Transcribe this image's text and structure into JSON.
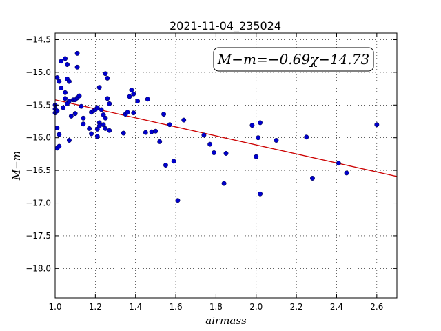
{
  "chart_data": {
    "type": "scatter",
    "title": "2021-11-04_235024",
    "xlabel": "airmass",
    "ylabel": "M−m",
    "xlim": [
      1.0,
      2.7
    ],
    "ylim": [
      -18.45,
      -14.4
    ],
    "y_inverted": true,
    "grid": true,
    "x_ticks": [
      1.0,
      1.2,
      1.4,
      1.6,
      1.8,
      2.0,
      2.2,
      2.4,
      2.6
    ],
    "x_tick_labels": [
      "1.0",
      "1.2",
      "1.4",
      "1.6",
      "1.8",
      "2.0",
      "2.2",
      "2.4",
      "2.6"
    ],
    "y_ticks": [
      -14.5,
      -15.0,
      -15.5,
      -16.0,
      -16.5,
      -17.0,
      -17.5,
      -18.0
    ],
    "y_tick_labels": [
      "−14.5",
      "−15.0",
      "−15.5",
      "−16.0",
      "−16.5",
      "−17.0",
      "−17.5",
      "−18.0"
    ],
    "annotation": "M−m=−0.69χ−14.73",
    "annotation_placement": "top-right",
    "fit": {
      "slope": -0.69,
      "intercept": -14.73,
      "color": "#cc0000"
    },
    "point_color": "#0000cc",
    "points": [
      [
        1.0,
        -15.5
      ],
      [
        1.0,
        -15.56
      ],
      [
        1.0,
        -15.62
      ],
      [
        1.01,
        -15.08
      ],
      [
        1.01,
        -15.59
      ],
      [
        1.01,
        -15.85
      ],
      [
        1.01,
        -16.16
      ],
      [
        1.02,
        -15.14
      ],
      [
        1.02,
        -15.95
      ],
      [
        1.02,
        -16.13
      ],
      [
        1.03,
        -15.24
      ],
      [
        1.03,
        -14.83
      ],
      [
        1.04,
        -15.54
      ],
      [
        1.05,
        -14.79
      ],
      [
        1.05,
        -15.31
      ],
      [
        1.05,
        -15.4
      ],
      [
        1.06,
        -14.88
      ],
      [
        1.06,
        -15.1
      ],
      [
        1.06,
        -15.48
      ],
      [
        1.07,
        -15.14
      ],
      [
        1.07,
        -15.44
      ],
      [
        1.07,
        -16.04
      ],
      [
        1.08,
        -15.67
      ],
      [
        1.09,
        -15.42
      ],
      [
        1.1,
        -15.63
      ],
      [
        1.1,
        -15.42
      ],
      [
        1.11,
        -14.71
      ],
      [
        1.11,
        -14.92
      ],
      [
        1.11,
        -15.39
      ],
      [
        1.12,
        -15.36
      ],
      [
        1.13,
        -15.52
      ],
      [
        1.14,
        -15.7
      ],
      [
        1.14,
        -15.79
      ],
      [
        1.17,
        -15.86
      ],
      [
        1.18,
        -15.61
      ],
      [
        1.18,
        -15.94
      ],
      [
        1.19,
        -15.59
      ],
      [
        1.2,
        -15.57
      ],
      [
        1.21,
        -15.54
      ],
      [
        1.21,
        -15.98
      ],
      [
        1.21,
        -15.87
      ],
      [
        1.22,
        -15.77
      ],
      [
        1.22,
        -15.82
      ],
      [
        1.22,
        -15.23
      ],
      [
        1.23,
        -15.57
      ],
      [
        1.24,
        -15.65
      ],
      [
        1.24,
        -15.8
      ],
      [
        1.25,
        -15.86
      ],
      [
        1.25,
        -15.7
      ],
      [
        1.25,
        -15.02
      ],
      [
        1.26,
        -15.09
      ],
      [
        1.26,
        -15.4
      ],
      [
        1.27,
        -15.89
      ],
      [
        1.27,
        -15.48
      ],
      [
        1.34,
        -15.93
      ],
      [
        1.35,
        -15.64
      ],
      [
        1.36,
        -15.61
      ],
      [
        1.37,
        -15.37
      ],
      [
        1.38,
        -15.27
      ],
      [
        1.39,
        -15.33
      ],
      [
        1.39,
        -15.62
      ],
      [
        1.41,
        -15.44
      ],
      [
        1.45,
        -15.92
      ],
      [
        1.46,
        -15.41
      ],
      [
        1.48,
        -15.91
      ],
      [
        1.5,
        -15.9
      ],
      [
        1.52,
        -16.06
      ],
      [
        1.54,
        -15.64
      ],
      [
        1.55,
        -16.42
      ],
      [
        1.57,
        -15.8
      ],
      [
        1.59,
        -16.36
      ],
      [
        1.61,
        -16.96
      ],
      [
        1.64,
        -15.73
      ],
      [
        1.74,
        -15.96
      ],
      [
        1.77,
        -16.1
      ],
      [
        1.79,
        -16.23
      ],
      [
        1.84,
        -16.7
      ],
      [
        1.85,
        -16.24
      ],
      [
        1.98,
        -15.81
      ],
      [
        2.0,
        -16.29
      ],
      [
        2.01,
        -16.0
      ],
      [
        2.02,
        -15.77
      ],
      [
        2.02,
        -16.86
      ],
      [
        2.1,
        -16.04
      ],
      [
        2.25,
        -15.99
      ],
      [
        2.28,
        -16.62
      ],
      [
        2.41,
        -16.39
      ],
      [
        2.45,
        -16.54
      ],
      [
        2.6,
        -15.8
      ]
    ]
  }
}
